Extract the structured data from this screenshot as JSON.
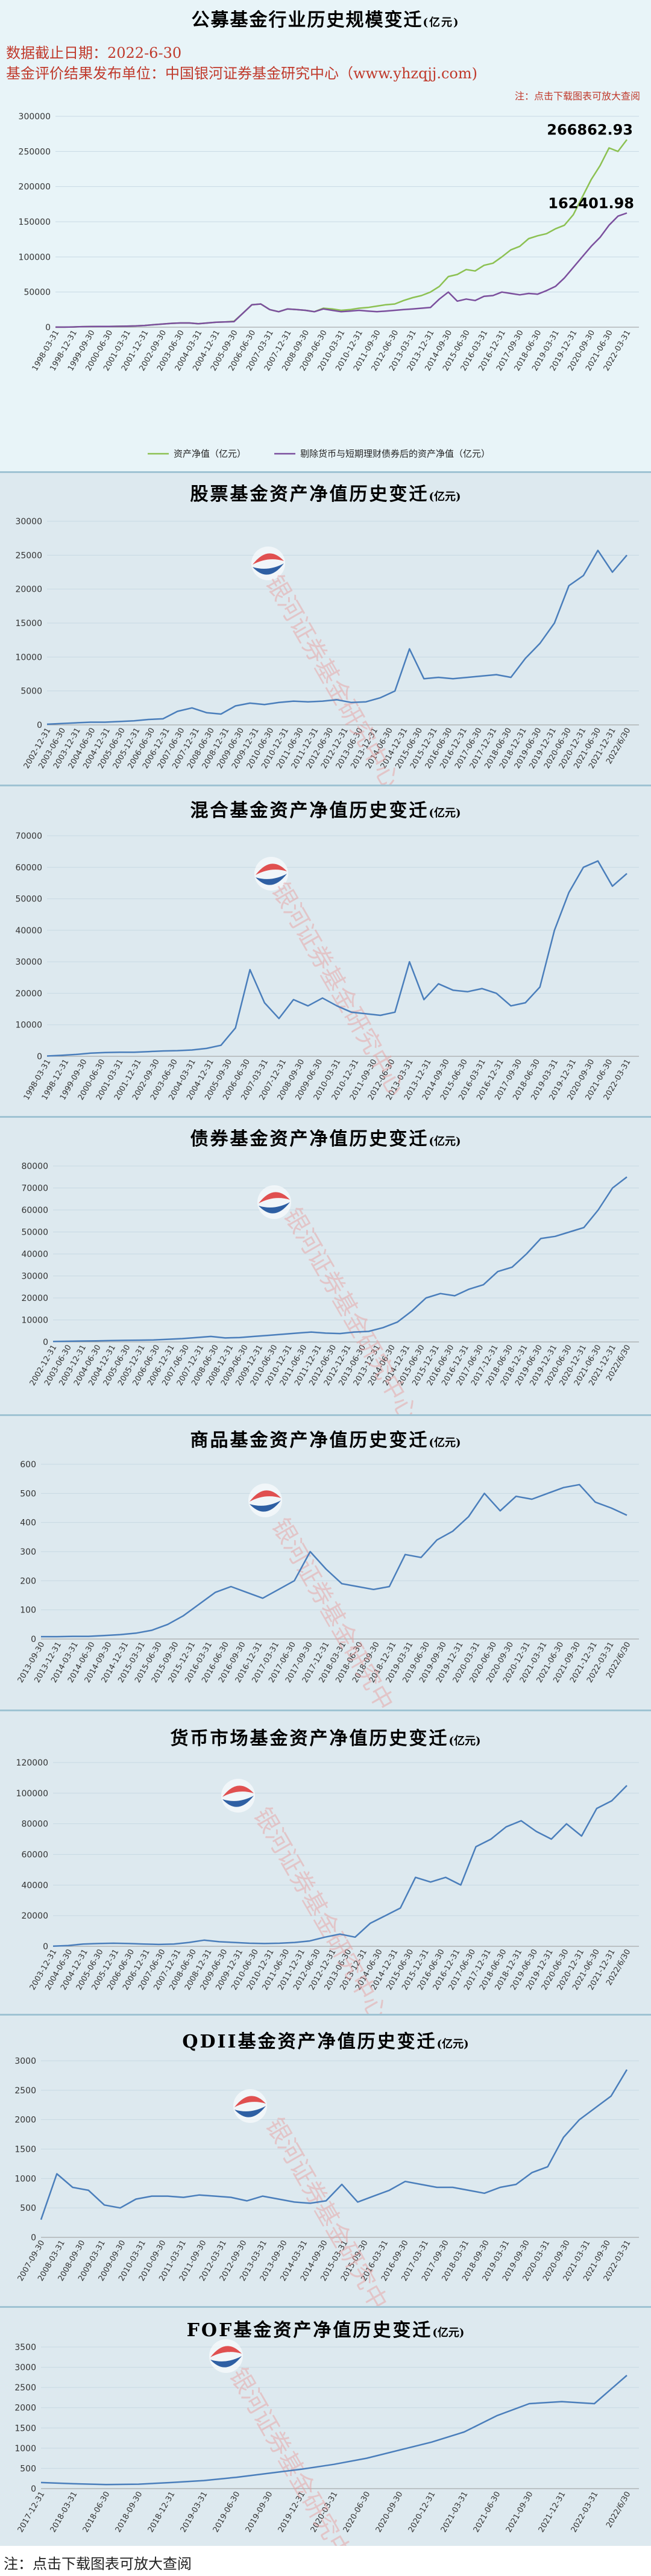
{
  "header": {
    "title": "公募基金行业历史规模变迁",
    "title_unit": "(亿元)",
    "date_line": "数据截止日期：2022-6-30",
    "publisher_line": "基金评价结果发布单位：中国银河证券基金研究中心（www.yhzqjj.com)",
    "note": "注：点击下载图表可放大查阅"
  },
  "footer": {
    "note": "注：点击下载图表可放大查阅"
  },
  "watermark": {
    "text": "银河证券基金研究中心"
  },
  "colors": {
    "line": "#4a7ebb",
    "green": "#8cc152",
    "purple": "#7b4f9d",
    "grid": "#c7d9e3",
    "logo_red": "#e05050",
    "logo_blue": "#2e5fa3"
  },
  "chart_data": [
    {
      "id": "overall",
      "type": "line",
      "title": "公募基金行业历史规模变迁",
      "ylim": [
        0,
        300000
      ],
      "yticks": [
        0,
        50000,
        100000,
        150000,
        200000,
        250000,
        300000
      ],
      "xticks": [
        "1998-03-31",
        "1998-12-31",
        "1999-09-30",
        "2000-06-30",
        "2001-03-31",
        "2001-12-31",
        "2002-09-30",
        "2003-06-30",
        "2004-03-31",
        "2004-12-31",
        "2005-09-30",
        "2006-06-30",
        "2007-03-31",
        "2007-12-31",
        "2008-09-30",
        "2009-06-30",
        "2010-03-31",
        "2010-12-31",
        "2011-09-30",
        "2012-06-30",
        "2013-03-31",
        "2013-12-31",
        "2014-09-30",
        "2015-06-30",
        "2016-03-31",
        "2016-12-31",
        "2017-09-30",
        "2018-06-30",
        "2019-03-31",
        "2019-12-31",
        "2020-09-30",
        "2021-06-30",
        "2022-03-31"
      ],
      "series": [
        {
          "name": "资产净值（亿元）",
          "color": "#8cc152",
          "values": [
            100,
            110,
            300,
            800,
            900,
            1000,
            1100,
            1300,
            1500,
            1800,
            2500,
            3500,
            4500,
            5500,
            6000,
            6000,
            5000,
            6000,
            7000,
            7500,
            8500,
            20000,
            32000,
            33000,
            25000,
            22000,
            26000,
            25000,
            24000,
            22000,
            27000,
            26000,
            24000,
            25000,
            27000,
            28000,
            30000,
            32000,
            33000,
            38000,
            42000,
            45000,
            50000,
            58000,
            72000,
            75000,
            82000,
            80000,
            88000,
            91000,
            100000,
            110000,
            115000,
            126000,
            130000,
            133000,
            140000,
            145000,
            160000,
            185000,
            210000,
            230000,
            255000,
            250000,
            266862.93
          ]
        },
        {
          "name": "剔除货币与短期理财债券后的资产净值（亿元）",
          "color": "#7b4f9d",
          "values": [
            100,
            110,
            300,
            800,
            900,
            1000,
            1100,
            1300,
            1500,
            1800,
            2500,
            3500,
            4500,
            5500,
            6000,
            6000,
            5000,
            6000,
            7000,
            7500,
            8000,
            20000,
            32000,
            33000,
            25000,
            22000,
            26000,
            25000,
            24000,
            22000,
            26000,
            24000,
            22000,
            23000,
            24000,
            23000,
            22000,
            23000,
            24000,
            25000,
            26000,
            27000,
            28000,
            40000,
            50000,
            37000,
            40000,
            38000,
            44000,
            45000,
            50000,
            48000,
            46000,
            48000,
            47000,
            52000,
            58000,
            70000,
            85000,
            100000,
            115000,
            128000,
            145000,
            158000,
            162401.98
          ]
        }
      ],
      "annotations": [
        "266862.93",
        "162401.98"
      ],
      "legend": [
        "资产净值（亿元）",
        "剔除货币与短期理财债券后的资产净值（亿元）"
      ],
      "legend_position": "bottom"
    },
    {
      "id": "stock",
      "type": "line",
      "title": "股票基金资产净值历史变迁",
      "ylim": [
        0,
        30000
      ],
      "yticks": [
        0,
        5000,
        10000,
        15000,
        20000,
        25000,
        30000
      ],
      "xticks": [
        "2002-12-31",
        "2003-06-30",
        "2003-12-31",
        "2004-06-30",
        "2004-12-31",
        "2005-06-30",
        "2005-12-31",
        "2006-06-30",
        "2006-12-31",
        "2007-06-30",
        "2007-12-31",
        "2008-06-30",
        "2008-12-31",
        "2009-06-30",
        "2009-12-31",
        "2010-06-30",
        "2010-12-31",
        "2011-06-30",
        "2011-12-31",
        "2012-06-30",
        "2012-12-31",
        "2013-06-30",
        "2013-12-31",
        "2014-06-30",
        "2014-12-31",
        "2015-06-30",
        "2015-12-31",
        "2016-06-30",
        "2016-12-31",
        "2017-06-30",
        "2017-12-31",
        "2018-06-30",
        "2018-12-31",
        "2019-06-30",
        "2019-12-31",
        "2020-06-30",
        "2020-12-31",
        "2021-06-30",
        "2021-12-31",
        "2022/6/30"
      ],
      "series": [
        {
          "name": "",
          "color": "#4a7ebb",
          "values": [
            100,
            200,
            300,
            400,
            400,
            500,
            600,
            800,
            900,
            2000,
            2500,
            1800,
            1600,
            2800,
            3200,
            3000,
            3300,
            3500,
            3400,
            3500,
            3700,
            3300,
            3400,
            4000,
            5000,
            11200,
            6800,
            7000,
            6800,
            7000,
            7200,
            7400,
            7000,
            9800,
            12000,
            15000,
            20500,
            22000,
            25700,
            22500,
            25000
          ]
        }
      ]
    },
    {
      "id": "hybrid",
      "type": "line",
      "title": "混合基金资产净值历史变迁",
      "ylim": [
        0,
        70000
      ],
      "yticks": [
        0,
        10000,
        20000,
        30000,
        40000,
        50000,
        60000,
        70000
      ],
      "xticks": [
        "1998-03-31",
        "1998-12-31",
        "1999-09-30",
        "2000-06-30",
        "2001-03-31",
        "2001-12-31",
        "2002-09-30",
        "2003-06-30",
        "2004-03-31",
        "2004-12-31",
        "2005-09-30",
        "2006-06-30",
        "2007-03-31",
        "2007-12-31",
        "2008-09-30",
        "2009-06-30",
        "2010-03-31",
        "2010-12-31",
        "2011-09-30",
        "2012-06-30",
        "2013-03-31",
        "2013-12-31",
        "2014-09-30",
        "2015-06-30",
        "2016-03-31",
        "2016-12-31",
        "2017-09-30",
        "2018-06-30",
        "2019-03-31",
        "2019-12-31",
        "2020-09-30",
        "2021-06-30",
        "2022-03-31"
      ],
      "series": [
        {
          "name": "",
          "color": "#4a7ebb",
          "values": [
            100,
            300,
            600,
            1000,
            1200,
            1300,
            1300,
            1500,
            1700,
            1800,
            2000,
            2500,
            3500,
            9000,
            27500,
            17000,
            12000,
            18000,
            16000,
            18500,
            16000,
            14000,
            13500,
            13000,
            14000,
            30000,
            18000,
            23000,
            21000,
            20500,
            21500,
            20000,
            16000,
            17000,
            22000,
            40000,
            52000,
            60000,
            62000,
            54000,
            58000
          ]
        }
      ]
    },
    {
      "id": "bond",
      "type": "line",
      "title": "债券基金资产净值历史变迁",
      "ylim": [
        0,
        80000
      ],
      "yticks": [
        0,
        10000,
        20000,
        30000,
        40000,
        50000,
        60000,
        70000,
        80000
      ],
      "xticks": [
        "2002-12-31",
        "2003-06-30",
        "2003-12-31",
        "2004-06-30",
        "2004-12-31",
        "2005-06-30",
        "2005-12-31",
        "2006-06-30",
        "2006-12-31",
        "2007-06-30",
        "2007-12-31",
        "2008-06-30",
        "2008-12-31",
        "2009-06-30",
        "2009-12-31",
        "2010-06-30",
        "2010-12-31",
        "2011-06-30",
        "2011-12-31",
        "2012-06-30",
        "2012-12-31",
        "2013-06-30",
        "2013-12-31",
        "2014-06-30",
        "2014-12-31",
        "2015-06-30",
        "2015-12-31",
        "2016-06-30",
        "2016-12-31",
        "2017-06-30",
        "2017-12-31",
        "2018-06-30",
        "2018-12-31",
        "2019-06-30",
        "2019-12-31",
        "2020-06-30",
        "2020-12-31",
        "2021-06-30",
        "2021-12-31",
        "2022/6/30"
      ],
      "series": [
        {
          "name": "",
          "color": "#4a7ebb",
          "values": [
            200,
            300,
            400,
            500,
            600,
            700,
            800,
            900,
            1200,
            1500,
            2000,
            2500,
            1800,
            2000,
            2500,
            3000,
            3500,
            4000,
            4500,
            4000,
            3800,
            4500,
            4800,
            6500,
            9000,
            14000,
            20000,
            22000,
            21000,
            24000,
            26000,
            32000,
            34000,
            40000,
            47000,
            48000,
            50000,
            52000,
            60000,
            70000,
            75000
          ]
        }
      ]
    },
    {
      "id": "commodity",
      "type": "line",
      "title": "商品基金资产净值历史变迁",
      "ylim": [
        0,
        600
      ],
      "yticks": [
        0,
        100,
        200,
        300,
        400,
        500,
        600
      ],
      "xticks": [
        "2013-09-30",
        "2013-12-31",
        "2014-03-31",
        "2014-06-30",
        "2014-09-30",
        "2014-12-31",
        "2015-03-31",
        "2015-06-30",
        "2015-09-30",
        "2015-12-31",
        "2016-03-31",
        "2016-06-30",
        "2016-09-30",
        "2016-12-31",
        "2017-03-31",
        "2017-06-30",
        "2017-09-30",
        "2017-12-31",
        "2018-03-31",
        "2018-06-30",
        "2018-09-30",
        "2018-12-31",
        "2019-03-31",
        "2019-06-30",
        "2019-09-30",
        "2019-12-31",
        "2020-03-31",
        "2020-06-30",
        "2020-09-30",
        "2020-12-31",
        "2021-03-31",
        "2021-06-30",
        "2021-09-30",
        "2021-12-31",
        "2022-03-31",
        "2022/6/30"
      ],
      "series": [
        {
          "name": "",
          "color": "#4a7ebb",
          "values": [
            8,
            8,
            9,
            9,
            12,
            15,
            20,
            30,
            50,
            80,
            120,
            160,
            180,
            160,
            140,
            170,
            200,
            300,
            240,
            190,
            180,
            170,
            180,
            290,
            280,
            340,
            370,
            420,
            500,
            440,
            490,
            480,
            500,
            520,
            530,
            470,
            450,
            425
          ]
        }
      ]
    },
    {
      "id": "money",
      "type": "line",
      "title": "货币市场基金资产净值历史变迁",
      "ylim": [
        0,
        120000
      ],
      "yticks": [
        0,
        20000,
        40000,
        60000,
        80000,
        100000,
        120000
      ],
      "xticks": [
        "2003-12-31",
        "2004-06-30",
        "2004-12-31",
        "2005-06-30",
        "2005-12-31",
        "2006-06-30",
        "2006-12-31",
        "2007-06-30",
        "2007-12-31",
        "2008-06-30",
        "2008-12-31",
        "2009-06-30",
        "2009-12-31",
        "2010-06-30",
        "2010-12-31",
        "2011-06-30",
        "2011-12-31",
        "2012-06-30",
        "2012-12-31",
        "2013-06-30",
        "2013-12-31",
        "2014-06-30",
        "2014-12-31",
        "2015-06-30",
        "2015-12-31",
        "2016-06-30",
        "2016-12-31",
        "2017-06-30",
        "2017-12-31",
        "2018-06-30",
        "2018-12-31",
        "2019-06-30",
        "2019-12-31",
        "2020-06-30",
        "2020-12-31",
        "2021-06-30",
        "2021-12-31",
        "2022/6/30"
      ],
      "series": [
        {
          "name": "",
          "color": "#4a7ebb",
          "values": [
            100,
            500,
            1500,
            1800,
            2000,
            1800,
            1500,
            1200,
            1500,
            2500,
            4000,
            3000,
            2500,
            2000,
            1800,
            2000,
            2500,
            3500,
            6000,
            8000,
            6000,
            15000,
            20000,
            25000,
            45000,
            42000,
            45000,
            40000,
            65000,
            70000,
            78000,
            82000,
            75000,
            70000,
            80000,
            72000,
            90000,
            95000,
            105000
          ]
        }
      ]
    },
    {
      "id": "qdii",
      "type": "line",
      "title": "QDII基金资产净值历史变迁",
      "ylim": [
        0,
        3000
      ],
      "yticks": [
        0,
        500,
        1000,
        1500,
        2000,
        2500,
        3000
      ],
      "xticks": [
        "2007-09-30",
        "2008-03-31",
        "2008-09-30",
        "2009-03-31",
        "2009-09-30",
        "2010-03-31",
        "2010-09-30",
        "2011-03-31",
        "2011-09-30",
        "2012-03-31",
        "2012-09-30",
        "2013-03-31",
        "2013-09-30",
        "2014-03-31",
        "2014-09-30",
        "2015-03-31",
        "2015-09-30",
        "2016-03-31",
        "2016-09-30",
        "2017-03-31",
        "2017-09-30",
        "2018-03-31",
        "2018-09-30",
        "2019-03-31",
        "2019-09-30",
        "2020-03-31",
        "2020-09-30",
        "2021-03-31",
        "2021-09-30",
        "2022-03-31"
      ],
      "series": [
        {
          "name": "",
          "color": "#4a7ebb",
          "values": [
            300,
            1080,
            850,
            800,
            550,
            500,
            650,
            700,
            700,
            680,
            720,
            700,
            680,
            620,
            700,
            650,
            600,
            580,
            620,
            900,
            600,
            700,
            800,
            950,
            900,
            850,
            850,
            800,
            750,
            850,
            900,
            1100,
            1200,
            1700,
            2000,
            2200,
            2400,
            2850
          ]
        }
      ]
    },
    {
      "id": "fof",
      "type": "line",
      "title": "FOF基金资产净值历史变迁",
      "ylim": [
        0,
        3500
      ],
      "yticks": [
        0,
        500,
        1000,
        1500,
        2000,
        2500,
        3000,
        3500
      ],
      "xticks": [
        "2017-12-31",
        "2018-03-31",
        "2018-06-30",
        "2018-09-30",
        "2018-12-31",
        "2019-03-31",
        "2019-06-30",
        "2019-09-30",
        "2019-12-31",
        "2020-03-31",
        "2020-06-30",
        "2020-09-30",
        "2020-12-31",
        "2021-03-31",
        "2021-06-30",
        "2021-09-30",
        "2021-12-31",
        "2022-03-31",
        "2022/6/30"
      ],
      "series": [
        {
          "name": "",
          "color": "#4a7ebb",
          "values": [
            150,
            120,
            100,
            110,
            150,
            200,
            280,
            380,
            480,
            600,
            750,
            950,
            1150,
            1400,
            1800,
            2100,
            2150,
            2100,
            2800
          ]
        }
      ]
    }
  ]
}
